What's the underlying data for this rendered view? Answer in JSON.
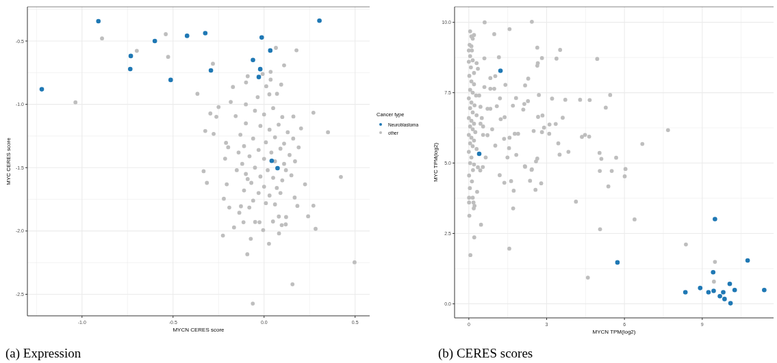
{
  "chart_data": [
    {
      "type": "scatter",
      "title": "(a) Expression",
      "xlabel": "MYCN CERES score",
      "ylabel": "MYC CERES score",
      "legend_title": "Cancer type",
      "legend": "right",
      "grid": true,
      "marker": "circle",
      "xlim": [
        -1.3,
        0.58
      ],
      "ylim": [
        -2.67,
        -0.23
      ],
      "xticks": [
        {
          "value": -1.25,
          "label": null
        },
        {
          "value": -1,
          "label": "-1.0"
        },
        {
          "value": -0.75,
          "label": null
        },
        {
          "value": -0.5,
          "label": "-0.5"
        },
        {
          "value": -0.25,
          "label": null
        },
        {
          "value": 0,
          "label": "0.0"
        },
        {
          "value": 0.25,
          "label": null
        },
        {
          "value": 0.5,
          "label": "0.5"
        }
      ],
      "yticks": [
        {
          "value": -2.5,
          "label": "-2.5"
        },
        {
          "value": -2.25,
          "label": null
        },
        {
          "value": -2,
          "label": "-2.0"
        },
        {
          "value": -1.75,
          "label": null
        },
        {
          "value": -1.5,
          "label": "-1.5"
        },
        {
          "value": -1.25,
          "label": null
        },
        {
          "value": -1,
          "label": "-1.0"
        },
        {
          "value": -0.75,
          "label": null
        },
        {
          "value": -0.5,
          "label": "-0.5"
        },
        {
          "value": -0.25,
          "label": null
        }
      ],
      "series": [
        {
          "name": "Neuroblastoma",
          "color": "#1f78b4",
          "x": [
            -0.91,
            0.304,
            -1.221,
            -0.6,
            -0.423,
            -0.323,
            -0.013,
            -0.732,
            -0.735,
            -0.513,
            -0.292,
            0.034,
            -0.061,
            -0.021,
            -0.029,
            0.074,
            0.042
          ],
          "values": [
            -0.343,
            -0.339,
            -0.881,
            -0.5,
            -0.459,
            -0.438,
            -0.472,
            -0.618,
            -0.721,
            -0.807,
            -0.732,
            -0.575,
            -0.65,
            -0.722,
            -0.784,
            -1.504,
            -1.446
          ]
        },
        {
          "name": "other",
          "color": "#bebebe",
          "x": [
            -0.89,
            -1.036,
            -0.54,
            -0.699,
            -0.527,
            -0.366,
            -0.281,
            0.065,
            0.178,
            0.11,
            0.036,
            -0.008,
            -0.09,
            -0.099,
            -0.171,
            0.036,
            0.094,
            0.012,
            -0.035,
            0.029,
            0.071,
            -0.183,
            -0.25,
            -0.295,
            -0.262,
            -0.323,
            -0.277,
            0.271,
            0.351,
            0.203,
            0.161,
            -0.209,
            -0.197,
            -0.214,
            -0.156,
            -0.1,
            -0.332,
            -0.314,
            0.422,
            -0.205,
            -0.221,
            -0.191,
            -0.136,
            -0.165,
            -0.226,
            -0.073,
            -0.092,
            0.027,
            0.082,
            -0.005,
            -0.113,
            -0.049,
            -0.025,
            0.049,
            0.119,
            0.097,
            0.121,
            0.081,
            0.242,
            0.283,
            0.271,
            0.183,
            0.225,
            0.168,
            0.156,
            0.497,
            -0.062,
            -0.081,
            -0.127,
            -0.05,
            0,
            0.05,
            0.1,
            -0.1,
            -0.02,
            0.03,
            0.08,
            0.13,
            -0.13,
            -0.06,
            0.01,
            0.06,
            0.11,
            0.16,
            -0.11,
            -0.03,
            0.04,
            0.09,
            0.14,
            -0.08,
            0,
            0.06,
            0.11,
            -0.12,
            -0.05,
            0.02,
            0.12,
            -0.1,
            -0.02,
            0.05,
            0.1,
            -0.07,
            0,
            0.07,
            -0.11,
            -0.03,
            0.03,
            0.09,
            -0.06,
            0.01,
            0.06,
            -0.09,
            0.15,
            -0.14,
            0.17,
            0.19,
            -0.15
          ],
          "values": [
            -0.479,
            -0.984,
            -0.446,
            -0.577,
            -0.625,
            -0.917,
            -0.679,
            -0.554,
            -0.573,
            -0.692,
            -0.743,
            -0.76,
            -0.778,
            -0.827,
            -0.863,
            -0.805,
            -0.844,
            -0.857,
            -0.943,
            -0.921,
            -0.917,
            -0.981,
            -1.021,
            -1.072,
            -1.098,
            -1.21,
            -1.233,
            -1.066,
            -1.22,
            -1.19,
            -1.096,
            -1.304,
            -1.339,
            -1.429,
            -1.093,
            -1.0,
            -1.528,
            -1.62,
            -1.573,
            -1.631,
            -1.745,
            -1.815,
            -1.856,
            -1.972,
            -2.036,
            -2.062,
            -2.184,
            -2.101,
            -2.019,
            -1.993,
            -1.931,
            -1.929,
            -1.931,
            -1.925,
            -1.948,
            -1.954,
            -1.89,
            -1.886,
            -1.884,
            -1.983,
            -1.8,
            -1.802,
            -1.631,
            -1.736,
            -2.421,
            -2.247,
            -2.573,
            -1.815,
            -1.805,
            -1.05,
            -1.08,
            -1.03,
            -1.1,
            -1.15,
            -1.17,
            -1.2,
            -1.16,
            -1.22,
            -1.24,
            -1.27,
            -1.3,
            -1.26,
            -1.31,
            -1.27,
            -1.33,
            -1.36,
            -1.38,
            -1.35,
            -1.4,
            -1.41,
            -1.43,
            -1.45,
            -1.47,
            -1.47,
            -1.5,
            -1.52,
            -1.52,
            -1.55,
            -1.57,
            -1.58,
            -1.6,
            -1.62,
            -1.65,
            -1.66,
            -1.68,
            -1.7,
            -1.72,
            -1.7,
            -1.76,
            -1.78,
            -1.79,
            -1.59,
            -1.56,
            -1.38,
            -1.45,
            -1.34,
            -1.52
          ]
        }
      ]
    },
    {
      "type": "scatter",
      "title": "(b) CERES scores",
      "xlabel": "MYCN TPM(log2)",
      "ylabel": "MYC TPM(log2)",
      "grid": true,
      "marker": "circle",
      "xlim": [
        -0.55,
        11.75
      ],
      "ylim": [
        -0.5,
        10.55
      ],
      "xticks": [
        0,
        {
          "value": 1.5,
          "label": null
        },
        3,
        {
          "value": 4.5,
          "label": null
        },
        6,
        {
          "value": 7.5,
          "label": null
        },
        9,
        {
          "value": 10.5,
          "label": null
        }
      ],
      "yticks": [
        {
          "value": 0,
          "label": "0.0"
        },
        {
          "value": 1.25,
          "label": null
        },
        {
          "value": 2.5,
          "label": "2.5"
        },
        {
          "value": 3.75,
          "label": null
        },
        {
          "value": 5,
          "label": "5.0"
        },
        {
          "value": 6.25,
          "label": null
        },
        {
          "value": 7.5,
          "label": "7.5"
        },
        {
          "value": 8.75,
          "label": null
        },
        {
          "value": 10,
          "label": "10.0"
        }
      ],
      "series": [
        {
          "color": "#1f78b4",
          "x": [
            1.22,
            0.4,
            5.73,
            9.49,
            10.75,
            9.42,
            8.92,
            8.35,
            9.24,
            9.44,
            9.81,
            9.68,
            9.86,
            10.06,
            10.25,
            10.09,
            11.39
          ],
          "values": [
            8.28,
            5.33,
            1.47,
            3.01,
            1.54,
            1.12,
            0.56,
            0.41,
            0.41,
            0.46,
            0.41,
            0.27,
            0.17,
            0.71,
            0.49,
            0.02,
            0.49
          ]
        },
        {
          "color": "#bebebe",
          "x": [
            0.61,
            2.43,
            1.57,
            0.98,
            2.64,
            3.52,
            4.95,
            2.82,
            3.38,
            2.66,
            2.64,
            1.16,
            0.6,
            2.29,
            2.17,
            1.41,
            2.7,
            5.45,
            3.21,
            3.72,
            4.29,
            4.66,
            5.28,
            7.68,
            6.69,
            3.62,
            2.84,
            2.67,
            3.11,
            3.35,
            2.9,
            2.82,
            3.1,
            2.5,
            4.36,
            4.48,
            4.64,
            3.45,
            3.5,
            3.84,
            5.04,
            5.11,
            5.68,
            6.04,
            5.51,
            5.05,
            2.59,
            2.64,
            1.83,
            1.49,
            1.55,
            1.02,
            2.16,
            2.43,
            1.7,
            1.82,
            2.1,
            2.14,
            2.28,
            1.9,
            1.77,
            1.57,
            1.36,
            1.23,
            1.38,
            1.2,
            1.08,
            0.83,
            1.02,
            0.83,
            0.98,
            0.72,
            0.83,
            0.9,
            0.72,
            0.05,
            0.1,
            0.15,
            0.2,
            0.03,
            0.1,
            0,
            0.12,
            0.05,
            0.15,
            0.3,
            0,
            0.08,
            0.2,
            0.35,
            0.02,
            0.1,
            0.2,
            0.05,
            0.15,
            0.28,
            0,
            0.1,
            0.22,
            0.05,
            0.15,
            0.3,
            0,
            0.1,
            0.2,
            0.05,
            0.15,
            0.25,
            0,
            0.1,
            0.2,
            0.05,
            0.15,
            0.3,
            0,
            0.1,
            0.05,
            0.2,
            0.45,
            0.5,
            0.55,
            0.45,
            0.4,
            0.6,
            0.55,
            0.65,
            0.35,
            0.54,
            0.44,
            0.16,
            0.01,
            0.12,
            0.04,
            0.32,
            0.15,
            0.01,
            0.01,
            0.18,
            0.22,
            0.19,
            0.02,
            0.47,
            0.21,
            0.06,
            1.19,
            1.37,
            1.63,
            1.73,
            1.71,
            1.56,
            2.17,
            2.42,
            2.36,
            2.57,
            2.79,
            4.13,
            4.59,
            6.01,
            5.38,
            6.39,
            5.06,
            8.37,
            9.49,
            9.45
          ],
          "values": [
            10.0,
            10.02,
            9.76,
            9.58,
            9.1,
            9.02,
            8.7,
            8.73,
            8.71,
            8.55,
            8.46,
            8.76,
            8.72,
            8.0,
            7.76,
            7.78,
            7.42,
            7.42,
            7.29,
            7.25,
            7.25,
            7.24,
            6.97,
            6.17,
            5.68,
            6.61,
            6.69,
            6.64,
            6.37,
            6.39,
            6.26,
            6.1,
            6.04,
            6.14,
            5.93,
            6.0,
            5.94,
            5.7,
            5.3,
            5.4,
            5.36,
            5.15,
            5.19,
            4.79,
            4.72,
            4.72,
            5.06,
            5.16,
            5.29,
            5.2,
            5.53,
            5.62,
            4.89,
            4.78,
            7.04,
            7.31,
            6.9,
            7.1,
            7.2,
            6.04,
            6.04,
            5.9,
            5.86,
            6.56,
            6.63,
            7.3,
            7.02,
            8.02,
            8.09,
            7.64,
            7.64,
            6.93,
            6.93,
            6.2,
            5.99,
            9.68,
            9.5,
            9.42,
            9.55,
            9.2,
            9.15,
            9.0,
            9.0,
            8.8,
            8.65,
            8.55,
            8.6,
            8.4,
            8.2,
            8.35,
            8.1,
            7.9,
            7.8,
            7.6,
            7.5,
            7.4,
            7.3,
            7.15,
            7.05,
            6.95,
            6.8,
            6.7,
            6.6,
            6.5,
            6.4,
            6.3,
            6.2,
            6.1,
            6.0,
            5.9,
            5.8,
            5.7,
            5.6,
            5.5,
            5.4,
            5.2,
            5.0,
            4.95,
            6.4,
            6.6,
            6.3,
            7.0,
            7.4,
            7.7,
            6.0,
            5.2,
            4.85,
            4.86,
            4.74,
            4.75,
            4.56,
            4.35,
            4.11,
            3.98,
            3.77,
            3.77,
            3.6,
            3.6,
            3.48,
            3.39,
            3.13,
            2.81,
            2.36,
            1.73,
            4.57,
            4.3,
            4.36,
            4.02,
            3.39,
            1.96,
            4.87,
            4.76,
            4.37,
            4.05,
            4.28,
            3.63,
            0.93,
            4.53,
            4.17,
            3.0,
            2.65,
            2.11,
            1.49,
            0.79
          ]
        }
      ]
    }
  ]
}
